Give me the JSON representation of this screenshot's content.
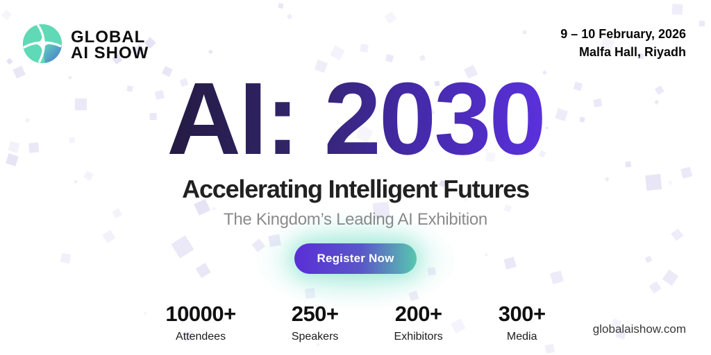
{
  "brand": {
    "logo_icon": "globe-logo",
    "name_line1": "GLOBAL",
    "name_line2": "AI SHOW"
  },
  "event": {
    "date": "9 – 10 February, 2026",
    "venue": "Malfa Hall, Riyadh"
  },
  "hero": {
    "title": "AI: 2030",
    "subtitle": "Accelerating Intelligent Futures",
    "tagline": "The Kingdom’s Leading AI Exhibition",
    "cta_label": "Register Now"
  },
  "stats": [
    {
      "value": "10000+",
      "label": "Attendees"
    },
    {
      "value": "250+",
      "label": "Speakers"
    },
    {
      "value": "200+",
      "label": "Exhibitors"
    },
    {
      "value": "300+",
      "label": "Media"
    }
  ],
  "footer": {
    "website": "globalaishow.com"
  },
  "colors": {
    "title_gradient_start": "#241a41",
    "title_gradient_end": "#5b31dd",
    "button_gradient_start": "#5a2ed6",
    "button_gradient_end": "#58c7ae",
    "button_glow": "#63ddc0",
    "logo_teal": "#5fd9b6",
    "logo_blue": "#4a6fd4",
    "confetti": "#d9d4f0",
    "tagline_gray": "#8a8a8a"
  }
}
